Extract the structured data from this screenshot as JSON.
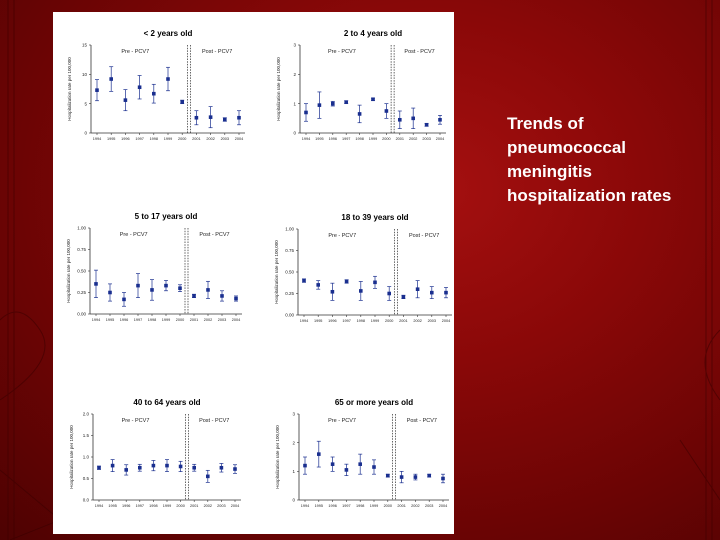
{
  "caption": "Trends of pneumococcal meningitis hospitalization rates",
  "colors": {
    "point": "#1a2f8f",
    "axis": "#333333",
    "background_dark": "#6a0404",
    "background_mid": "#a51010"
  },
  "chart_data": [
    {
      "type": "scatter",
      "title": "< 2 years old",
      "ylabel": "Hospitalization rate per 100,000",
      "ylim": [
        0,
        15
      ],
      "yticks": [
        "0",
        "5",
        "10",
        "15"
      ],
      "x": [
        "1994",
        "1995",
        "1996",
        "1997",
        "1998",
        "1999",
        "2000",
        "2001",
        "2002",
        "2003",
        "2004"
      ],
      "y": [
        7.3,
        9.2,
        5.6,
        7.8,
        6.7,
        9.2,
        5.3,
        2.6,
        2.7,
        2.3,
        2.6
      ],
      "err": [
        1.8,
        2.1,
        1.8,
        2.0,
        1.6,
        2.0,
        0.3,
        1.2,
        1.8,
        0.3,
        1.2
      ],
      "annotations": [
        "Pre - PCV7",
        "Post - PCV7"
      ]
    },
    {
      "type": "scatter",
      "title": "2 to 4 years old",
      "ylabel": "Hospitalization rate per 100,000",
      "ylim": [
        0,
        3
      ],
      "yticks": [
        "0",
        "1",
        "2",
        "3"
      ],
      "x": [
        "1994",
        "1995",
        "1996",
        "1997",
        "1998",
        "1999",
        "2000",
        "2001",
        "2002",
        "2003",
        "2004"
      ],
      "y": [
        0.7,
        0.95,
        1.0,
        1.05,
        0.65,
        1.15,
        0.75,
        0.45,
        0.5,
        0.28,
        0.45
      ],
      "err": [
        0.3,
        0.45,
        0.08,
        0.05,
        0.3,
        0.04,
        0.25,
        0.3,
        0.35,
        0.05,
        0.15
      ],
      "annotations": [
        "Pre - PCV7",
        "Post - PCV7"
      ]
    },
    {
      "type": "scatter",
      "title": "5 to 17 years old",
      "ylabel": "Hospitalization rate per 100,000",
      "ylim": [
        0,
        1
      ],
      "yticks": [
        "0.00",
        "0.25",
        "0.50",
        "0.75",
        "1.00"
      ],
      "x": [
        "1994",
        "1995",
        "1996",
        "1997",
        "1998",
        "1999",
        "2000",
        "2001",
        "2002",
        "2003",
        "2004"
      ],
      "y": [
        0.35,
        0.25,
        0.17,
        0.33,
        0.28,
        0.33,
        0.3,
        0.21,
        0.28,
        0.21,
        0.18
      ],
      "err": [
        0.16,
        0.1,
        0.08,
        0.14,
        0.12,
        0.06,
        0.04,
        0.02,
        0.1,
        0.06,
        0.03
      ],
      "annotations": [
        "Pre - PCV7",
        "Post - PCV7"
      ]
    },
    {
      "type": "scatter",
      "title": "18 to 39 years old",
      "ylabel": "Hospitalization rate per 100,000",
      "ylim": [
        0,
        1
      ],
      "yticks": [
        "0.00",
        "0.25",
        "0.50",
        "0.75",
        "1.00"
      ],
      "x": [
        "1994",
        "1995",
        "1996",
        "1997",
        "1998",
        "1999",
        "2000",
        "2001",
        "2002",
        "2003",
        "2004"
      ],
      "y": [
        0.4,
        0.35,
        0.27,
        0.39,
        0.28,
        0.38,
        0.25,
        0.21,
        0.3,
        0.26,
        0.26
      ],
      "err": [
        0.02,
        0.05,
        0.1,
        0.02,
        0.11,
        0.07,
        0.08,
        0.02,
        0.1,
        0.07,
        0.06
      ],
      "annotations": [
        "Pre - PCV7",
        "Post - PCV7"
      ]
    },
    {
      "type": "scatter",
      "title": "40 to 64 years old",
      "ylabel": "Hospitalization rate per 100,000",
      "ylim": [
        0,
        2
      ],
      "yticks": [
        "0.0",
        "0.5",
        "1.0",
        "1.5",
        "2.0"
      ],
      "x": [
        "1994",
        "1995",
        "1996",
        "1997",
        "1998",
        "1999",
        "2000",
        "2001",
        "2002",
        "2003",
        "2004"
      ],
      "y": [
        0.75,
        0.8,
        0.7,
        0.75,
        0.8,
        0.8,
        0.78,
        0.75,
        0.55,
        0.75,
        0.72
      ],
      "err": [
        0.04,
        0.14,
        0.12,
        0.08,
        0.12,
        0.14,
        0.12,
        0.08,
        0.14,
        0.1,
        0.1
      ],
      "annotations": [
        "Pre - PCV7",
        "Post - PCV7"
      ]
    },
    {
      "type": "scatter",
      "title": "65 or more years old",
      "ylabel": "Hospitalization rate per 100,000",
      "ylim": [
        0,
        3
      ],
      "yticks": [
        "0",
        "1",
        "2",
        "3"
      ],
      "x": [
        "1994",
        "1995",
        "1996",
        "1997",
        "1998",
        "1999",
        "2000",
        "2001",
        "2002",
        "2003",
        "2004"
      ],
      "y": [
        1.2,
        1.6,
        1.25,
        1.05,
        1.25,
        1.15,
        0.85,
        0.8,
        0.8,
        0.85,
        0.75
      ],
      "err": [
        0.3,
        0.45,
        0.25,
        0.2,
        0.35,
        0.25,
        0.05,
        0.2,
        0.1,
        0.05,
        0.15
      ],
      "annotations": [
        "Pre - PCV7",
        "Post - PCV7"
      ]
    }
  ]
}
